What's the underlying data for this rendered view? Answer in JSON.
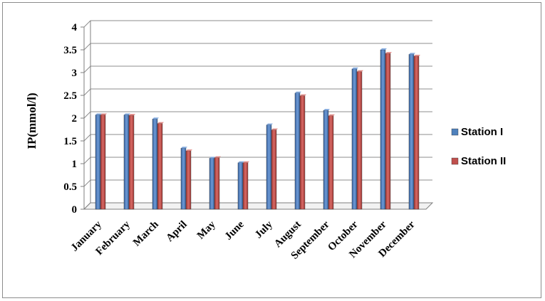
{
  "chart_data": {
    "type": "bar",
    "title": "",
    "xlabel": "",
    "ylabel": "IP(mmol/l)",
    "ylim": [
      0,
      4
    ],
    "yticks": [
      "0",
      "0.5",
      "1",
      "1.5",
      "2",
      "2.5",
      "3",
      "3.5",
      "4"
    ],
    "grid": true,
    "legend_position": "right",
    "categories": [
      "January",
      "February",
      "March",
      "April",
      "May",
      "June",
      "July",
      "August",
      "September",
      "October",
      "November",
      "December"
    ],
    "series": [
      {
        "name": "Station I",
        "color": "#4F81BD",
        "values": [
          2.07,
          2.07,
          1.98,
          1.34,
          1.12,
          1.02,
          1.85,
          2.55,
          2.17,
          3.08,
          3.5,
          3.4
        ]
      },
      {
        "name": "Station II",
        "color": "#C0504D",
        "values": [
          2.07,
          2.06,
          1.88,
          1.28,
          1.13,
          1.02,
          1.74,
          2.49,
          2.05,
          3.02,
          3.42,
          3.36
        ]
      }
    ]
  }
}
